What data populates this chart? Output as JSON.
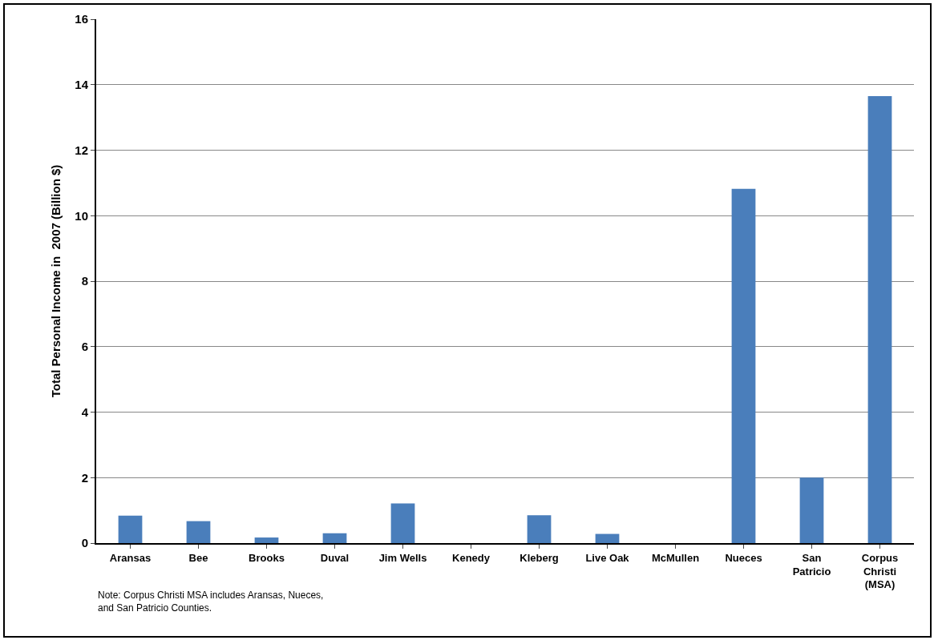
{
  "chart_data": {
    "type": "bar",
    "ylabel": "Total Personal Income in  2007 (Billion $)",
    "categories": [
      "Aransas",
      "Bee",
      "Brooks",
      "Duval",
      "Jim Wells",
      "Kenedy",
      "Kleberg",
      "Live Oak",
      "McMullen",
      "Nueces",
      "San Patricio",
      "Corpus Christi (MSA)"
    ],
    "values": [
      0.84,
      0.67,
      0.17,
      0.3,
      1.21,
      0,
      0.85,
      0.28,
      0,
      10.82,
      2.0,
      13.65
    ],
    "color": "#4a7ebb",
    "ylim": [
      0,
      16
    ],
    "yticks": [
      0,
      2,
      4,
      6,
      8,
      10,
      12,
      14,
      16
    ],
    "grid": "y",
    "annotations": [
      "Note: Corpus Christi MSA includes Aransas, Nueces, and San Patricio Counties."
    ]
  }
}
